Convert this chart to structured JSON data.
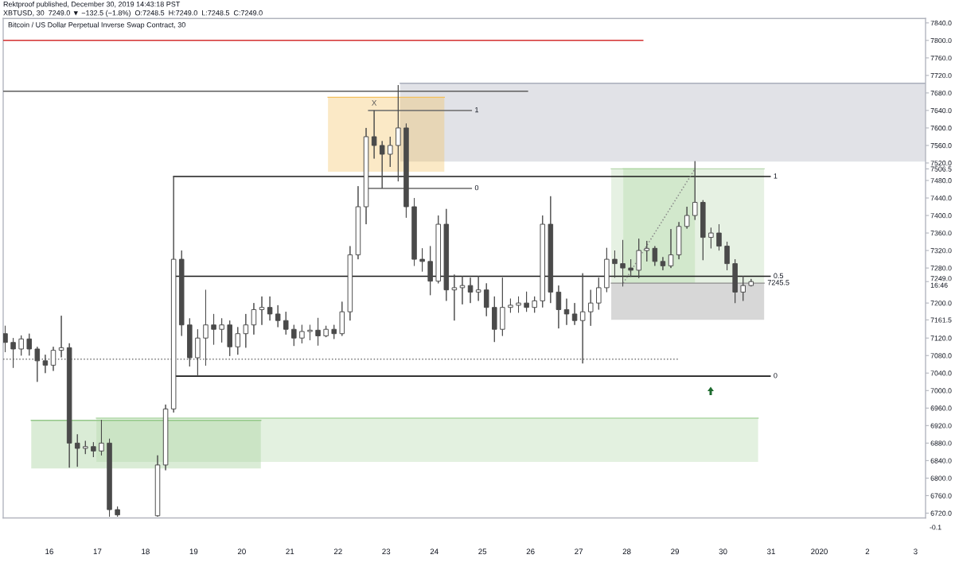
{
  "chart_data": {
    "type": "candlestick",
    "title": "Bitcoin / US Dollar Perpetual Inverse Swap Contract, 30",
    "subtitle": "XBTUSD, 30  7249.0 ▼ −132.5 (−1.8%)  O:7248.5  H:7249.0  L:7248.5  C:7249.0",
    "annotations": [
      "Rektproof published, December 30, 2019 14:43:18 PST",
      {
        "text": "X",
        "x": "2019-12-22T18:00",
        "y": 7640
      },
      "-0.1"
    ],
    "color": "#4a4a4a",
    "x": [
      "2019-12-15T02:00",
      "2019-12-15T06:00",
      "2019-12-15T10:00",
      "2019-12-15T14:00",
      "2019-12-15T18:00",
      "2019-12-15T22:00",
      "2019-12-16T02:00",
      "2019-12-16T06:00",
      "2019-12-16T10:00",
      "2019-12-16T14:00",
      "2019-12-16T18:00",
      "2019-12-16T22:00",
      "2019-12-17T02:00",
      "2019-12-17T06:00",
      "2019-12-17T10:00",
      "2019-12-18T06:00",
      "2019-12-18T10:00",
      "2019-12-18T14:00",
      "2019-12-18T18:00",
      "2019-12-18T22:00",
      "2019-12-19T02:00",
      "2019-12-19T06:00",
      "2019-12-19T10:00",
      "2019-12-19T14:00",
      "2019-12-19T18:00",
      "2019-12-19T22:00",
      "2019-12-20T02:00",
      "2019-12-20T06:00",
      "2019-12-20T10:00",
      "2019-12-20T14:00",
      "2019-12-20T18:00",
      "2019-12-20T22:00",
      "2019-12-21T02:00",
      "2019-12-21T06:00",
      "2019-12-21T10:00",
      "2019-12-21T14:00",
      "2019-12-21T18:00",
      "2019-12-21T22:00",
      "2019-12-22T02:00",
      "2019-12-22T06:00",
      "2019-12-22T10:00",
      "2019-12-22T14:00",
      "2019-12-22T18:00",
      "2019-12-22T22:00",
      "2019-12-23T02:00",
      "2019-12-23T06:00",
      "2019-12-23T10:00",
      "2019-12-23T14:00",
      "2019-12-23T18:00",
      "2019-12-23T22:00",
      "2019-12-24T02:00",
      "2019-12-24T06:00",
      "2019-12-24T10:00",
      "2019-12-24T14:00",
      "2019-12-24T18:00",
      "2019-12-24T22:00",
      "2019-12-25T02:00",
      "2019-12-25T06:00",
      "2019-12-25T10:00",
      "2019-12-25T14:00",
      "2019-12-25T18:00",
      "2019-12-25T22:00",
      "2019-12-26T02:00",
      "2019-12-26T06:00",
      "2019-12-26T10:00",
      "2019-12-26T14:00",
      "2019-12-26T18:00",
      "2019-12-26T22:00",
      "2019-12-27T02:00",
      "2019-12-27T06:00",
      "2019-12-27T10:00",
      "2019-12-27T14:00",
      "2019-12-27T18:00",
      "2019-12-27T22:00",
      "2019-12-28T02:00",
      "2019-12-28T06:00",
      "2019-12-28T10:00",
      "2019-12-28T14:00",
      "2019-12-28T18:00",
      "2019-12-28T22:00",
      "2019-12-29T02:00",
      "2019-12-29T06:00",
      "2019-12-29T10:00",
      "2019-12-29T14:00",
      "2019-12-29T18:00",
      "2019-12-29T22:00",
      "2019-12-30T02:00",
      "2019-12-30T06:00",
      "2019-12-30T10:00",
      "2019-12-30T14:00"
    ],
    "ohlc": [
      [
        7130,
        7148,
        7088,
        7110
      ],
      [
        7110,
        7120,
        7052,
        7095
      ],
      [
        7095,
        7126,
        7080,
        7118
      ],
      [
        7118,
        7130,
        7080,
        7095
      ],
      [
        7095,
        7100,
        7020,
        7068
      ],
      [
        7068,
        7082,
        7040,
        7058
      ],
      [
        7058,
        7100,
        7045,
        7092
      ],
      [
        7092,
        7171,
        7076,
        7098
      ],
      [
        7098,
        7108,
        6824,
        6880
      ],
      [
        6880,
        6900,
        6826,
        6868
      ],
      [
        6868,
        6885,
        6855,
        6872
      ],
      [
        6872,
        6882,
        6848,
        6862
      ],
      [
        6862,
        6933,
        6852,
        6880
      ],
      [
        6880,
        6890,
        6712,
        6728
      ],
      [
        6728,
        6735,
        6712,
        6716
      ],
      [
        6714,
        6852,
        6712,
        6830
      ],
      [
        6830,
        6968,
        6818,
        6958
      ],
      [
        6958,
        7489,
        6950,
        7300
      ],
      [
        7300,
        7320,
        7125,
        7150
      ],
      [
        7150,
        7165,
        7055,
        7075
      ],
      [
        7075,
        7140,
        7035,
        7120
      ],
      [
        7120,
        7230,
        7057,
        7150
      ],
      [
        7150,
        7175,
        7105,
        7140
      ],
      [
        7140,
        7165,
        7110,
        7150
      ],
      [
        7150,
        7160,
        7079,
        7100
      ],
      [
        7100,
        7145,
        7082,
        7130
      ],
      [
        7130,
        7175,
        7098,
        7150
      ],
      [
        7150,
        7200,
        7128,
        7185
      ],
      [
        7185,
        7215,
        7150,
        7190
      ],
      [
        7190,
        7215,
        7160,
        7175
      ],
      [
        7175,
        7195,
        7145,
        7160
      ],
      [
        7160,
        7180,
        7128,
        7140
      ],
      [
        7140,
        7150,
        7102,
        7120
      ],
      [
        7120,
        7150,
        7108,
        7135
      ],
      [
        7135,
        7150,
        7115,
        7138
      ],
      [
        7138,
        7166,
        7103,
        7125
      ],
      [
        7125,
        7148,
        7122,
        7140
      ],
      [
        7140,
        7150,
        7118,
        7130
      ],
      [
        7130,
        7203,
        7125,
        7180
      ],
      [
        7180,
        7330,
        7160,
        7310
      ],
      [
        7310,
        7467,
        7300,
        7420
      ],
      [
        7420,
        7600,
        7380,
        7580
      ],
      [
        7580,
        7640,
        7530,
        7560
      ],
      [
        7560,
        7570,
        7462,
        7540
      ],
      [
        7540,
        7580,
        7511,
        7560
      ],
      [
        7560,
        7698,
        7478,
        7600
      ],
      [
        7600,
        7610,
        7395,
        7420
      ],
      [
        7420,
        7440,
        7285,
        7300
      ],
      [
        7300,
        7325,
        7272,
        7295
      ],
      [
        7295,
        7330,
        7218,
        7250
      ],
      [
        7250,
        7400,
        7245,
        7380
      ],
      [
        7380,
        7415,
        7205,
        7230
      ],
      [
        7230,
        7265,
        7160,
        7235
      ],
      [
        7235,
        7262,
        7197,
        7240
      ],
      [
        7240,
        7258,
        7200,
        7225
      ],
      [
        7225,
        7262,
        7205,
        7230
      ],
      [
        7230,
        7245,
        7170,
        7190
      ],
      [
        7190,
        7215,
        7111,
        7140
      ],
      [
        7140,
        7258,
        7125,
        7190
      ],
      [
        7190,
        7210,
        7178,
        7195
      ],
      [
        7195,
        7215,
        7178,
        7200
      ],
      [
        7200,
        7226,
        7180,
        7190
      ],
      [
        7190,
        7215,
        7178,
        7205
      ],
      [
        7205,
        7400,
        7190,
        7380
      ],
      [
        7380,
        7444,
        7200,
        7225
      ],
      [
        7225,
        7240,
        7142,
        7185
      ],
      [
        7185,
        7210,
        7150,
        7175
      ],
      [
        7175,
        7200,
        7150,
        7160
      ],
      [
        7160,
        7268,
        7062,
        7180
      ],
      [
        7180,
        7230,
        7148,
        7200
      ],
      [
        7200,
        7258,
        7185,
        7235
      ],
      [
        7235,
        7326,
        7225,
        7300
      ],
      [
        7300,
        7320,
        7258,
        7290
      ],
      [
        7290,
        7344,
        7238,
        7280
      ],
      [
        7280,
        7300,
        7260,
        7275
      ],
      [
        7275,
        7347,
        7257,
        7320
      ],
      [
        7320,
        7342,
        7295,
        7325
      ],
      [
        7325,
        7330,
        7285,
        7295
      ],
      [
        7295,
        7305,
        7275,
        7285
      ],
      [
        7285,
        7369,
        7280,
        7310
      ],
      [
        7310,
        7385,
        7300,
        7375
      ],
      [
        7375,
        7420,
        7370,
        7400
      ],
      [
        7400,
        7524,
        7390,
        7430
      ],
      [
        7430,
        7435,
        7298,
        7350
      ],
      [
        7350,
        7372,
        7325,
        7360
      ],
      [
        7360,
        7380,
        7320,
        7330
      ],
      [
        7330,
        7340,
        7275,
        7290
      ],
      [
        7290,
        7300,
        7200,
        7225
      ],
      [
        7225,
        7262,
        7205,
        7240
      ],
      [
        7240,
        7255,
        7238,
        7249
      ]
    ],
    "series": [
      {
        "type": "line",
        "x": [
          "2019-12-23T07:00",
          "2020-01-03T05:00"
        ],
        "values": [
          7702,
          7702
        ],
        "lower": [
          7523,
          7523
        ],
        "upper": [
          7702,
          7702
        ],
        "color": "#a9adbb"
      },
      {
        "type": "line",
        "x": [
          "2019-12-21T19:00",
          "2019-12-24T05:00"
        ],
        "values": [
          7670,
          7670
        ],
        "lower": [
          7500,
          7500
        ],
        "upper": [
          7670,
          7670
        ],
        "color": "#f4c05c"
      },
      {
        "type": "line",
        "x": [
          "2019-12-15T15:00",
          "2019-12-20T09:30"
        ],
        "values": [
          6932,
          6932
        ],
        "lower": [
          6822,
          6822
        ],
        "upper": [
          6932,
          6932
        ],
        "color": "#94c889"
      },
      {
        "type": "line",
        "x": [
          "2019-12-16T23:30",
          "2019-12-30T17:30"
        ],
        "values": [
          6937,
          6937
        ],
        "lower": [
          6837,
          6837
        ],
        "upper": [
          6937,
          6937
        ],
        "color": "#afd7a6"
      },
      {
        "type": "line",
        "x": [
          "2019-12-27T16:15",
          "2019-12-30T20:30"
        ],
        "values": [
          7506.5,
          7506.5
        ],
        "lower": [
          7245.5,
          7245.5
        ],
        "upper": [
          7506.5,
          7506.5
        ],
        "color": "#b8d7af"
      },
      {
        "type": "line",
        "x": [
          "2019-12-27T22:15",
          "2019-12-29T10:00"
        ],
        "values": [
          7506.5,
          7506.5
        ],
        "lower": [
          7245.5,
          7245.5
        ],
        "upper": [
          7506.5,
          7506.5
        ],
        "color": "#add7a1"
      },
      {
        "type": "line",
        "name": "7245.5",
        "x": [
          "2019-12-27T16:15",
          "2019-12-30T20:30"
        ],
        "values": [
          7245.5,
          7245.5
        ],
        "lower": [
          7161.5,
          7161.5
        ],
        "upper": [
          7245.5,
          7245.5
        ],
        "color": "#8d8d8d"
      },
      {
        "type": "line",
        "x": [
          "2019-12-15T01:00",
          "2019-12-28T08:00"
        ],
        "values": [
          7800,
          7800
        ],
        "color": "#d32f2f"
      },
      {
        "type": "line",
        "x": [
          "2019-12-15T01:00",
          "2019-12-25T22:30"
        ],
        "values": [
          7684,
          7684
        ],
        "color": "#5d5d5d"
      },
      {
        "type": "line",
        "name": "1",
        "x": [
          "2019-12-22T15:15",
          "2019-12-24T18:30"
        ],
        "values": [
          7640,
          7640
        ],
        "color": "#6a6a6a"
      },
      {
        "type": "line",
        "name": "0",
        "x": [
          "2019-12-22T15:15",
          "2019-12-24T18:30"
        ],
        "values": [
          7462,
          7462
        ],
        "color": "#6a6a6a"
      },
      {
        "type": "line",
        "name": "1",
        "x": [
          "2019-12-18T14:00",
          "2019-12-30T23:30"
        ],
        "values": [
          7489,
          7489
        ],
        "color": "#1a1a1a"
      },
      {
        "type": "line",
        "name": "0.5",
        "x": [
          "2019-12-18T14:00",
          "2019-12-30T23:30"
        ],
        "values": [
          7261,
          7261
        ],
        "color": "#1a1a1a"
      },
      {
        "type": "line",
        "name": "0",
        "x": [
          "2019-12-18T14:00",
          "2019-12-30T23:30"
        ],
        "values": [
          7033,
          7033
        ],
        "color": "#1a1a1a"
      },
      {
        "type": "line",
        "x": [
          "2019-12-15T01:00",
          "2019-12-29T02:00"
        ],
        "values": [
          7072,
          7072
        ],
        "color": "#777777",
        "line_style": "dotted"
      },
      {
        "type": "line",
        "x": [
          "2019-12-27T22:15",
          "2019-12-29T10:00"
        ],
        "values": [
          7245.5,
          7506.5
        ],
        "color": "#8a8a8a",
        "line_style": "dotted"
      }
    ],
    "xlim": [
      "2019-12-15T01:00",
      "2020-01-03T05:00"
    ],
    "ylim": [
      6709,
      7850
    ],
    "xticks": [
      {
        "value": "2019-12-16",
        "label": "16"
      },
      {
        "value": "2019-12-17",
        "label": "17"
      },
      {
        "value": "2019-12-18",
        "label": "18"
      },
      {
        "value": "2019-12-19",
        "label": "19"
      },
      {
        "value": "2019-12-20",
        "label": "20"
      },
      {
        "value": "2019-12-21",
        "label": "21"
      },
      {
        "value": "2019-12-22",
        "label": "22"
      },
      {
        "value": "2019-12-23",
        "label": "23"
      },
      {
        "value": "2019-12-24",
        "label": "24"
      },
      {
        "value": "2019-12-25",
        "label": "25"
      },
      {
        "value": "2019-12-26",
        "label": "26"
      },
      {
        "value": "2019-12-27",
        "label": "27"
      },
      {
        "value": "2019-12-28",
        "label": "28"
      },
      {
        "value": "2019-12-29",
        "label": "29"
      },
      {
        "value": "2019-12-30",
        "label": "30"
      },
      {
        "value": "2019-12-31",
        "label": "31"
      },
      {
        "value": "2020-01-01",
        "label": "2020"
      },
      {
        "value": "2020-01-02",
        "label": "2"
      },
      {
        "value": "2020-01-03",
        "label": "3"
      }
    ],
    "yticks": [
      {
        "value": 6720,
        "label": "6720.0"
      },
      {
        "value": 6760,
        "label": "6760.0"
      },
      {
        "value": 6800,
        "label": "6800.0"
      },
      {
        "value": 6840,
        "label": "6840.0"
      },
      {
        "value": 6880,
        "label": "6880.0"
      },
      {
        "value": 6920,
        "label": "6920.0"
      },
      {
        "value": 6960,
        "label": "6960.0"
      },
      {
        "value": 7000,
        "label": "7000.0"
      },
      {
        "value": 7040,
        "label": "7040.0"
      },
      {
        "value": 7080,
        "label": "7080.0"
      },
      {
        "value": 7120,
        "label": "7120.0"
      },
      {
        "value": 7161.5,
        "label": "7161.5"
      },
      {
        "value": 7200,
        "label": "7200.0"
      },
      {
        "value": 7249,
        "label": "7249.0\n16:46"
      },
      {
        "value": 7280,
        "label": "7280.0"
      },
      {
        "value": 7320,
        "label": "7320.0"
      },
      {
        "value": 7360,
        "label": "7360.0"
      },
      {
        "value": 7400,
        "label": "7400.0"
      },
      {
        "value": 7440,
        "label": "7440.0"
      },
      {
        "value": 7480,
        "label": "7480.0"
      },
      {
        "value": 7506.5,
        "label": "7506.5"
      },
      {
        "value": 7520,
        "label": "7520.0"
      },
      {
        "value": 7560,
        "label": "7560.0"
      },
      {
        "value": 7600,
        "label": "7600.0"
      },
      {
        "value": 7640,
        "label": "7640.0"
      },
      {
        "value": 7680,
        "label": "7680.0"
      },
      {
        "value": 7720,
        "label": "7720.0"
      },
      {
        "value": 7760,
        "label": "7760.0"
      },
      {
        "value": 7800,
        "label": "7800.0"
      },
      {
        "value": 7840,
        "label": "7840.0"
      }
    ]
  }
}
